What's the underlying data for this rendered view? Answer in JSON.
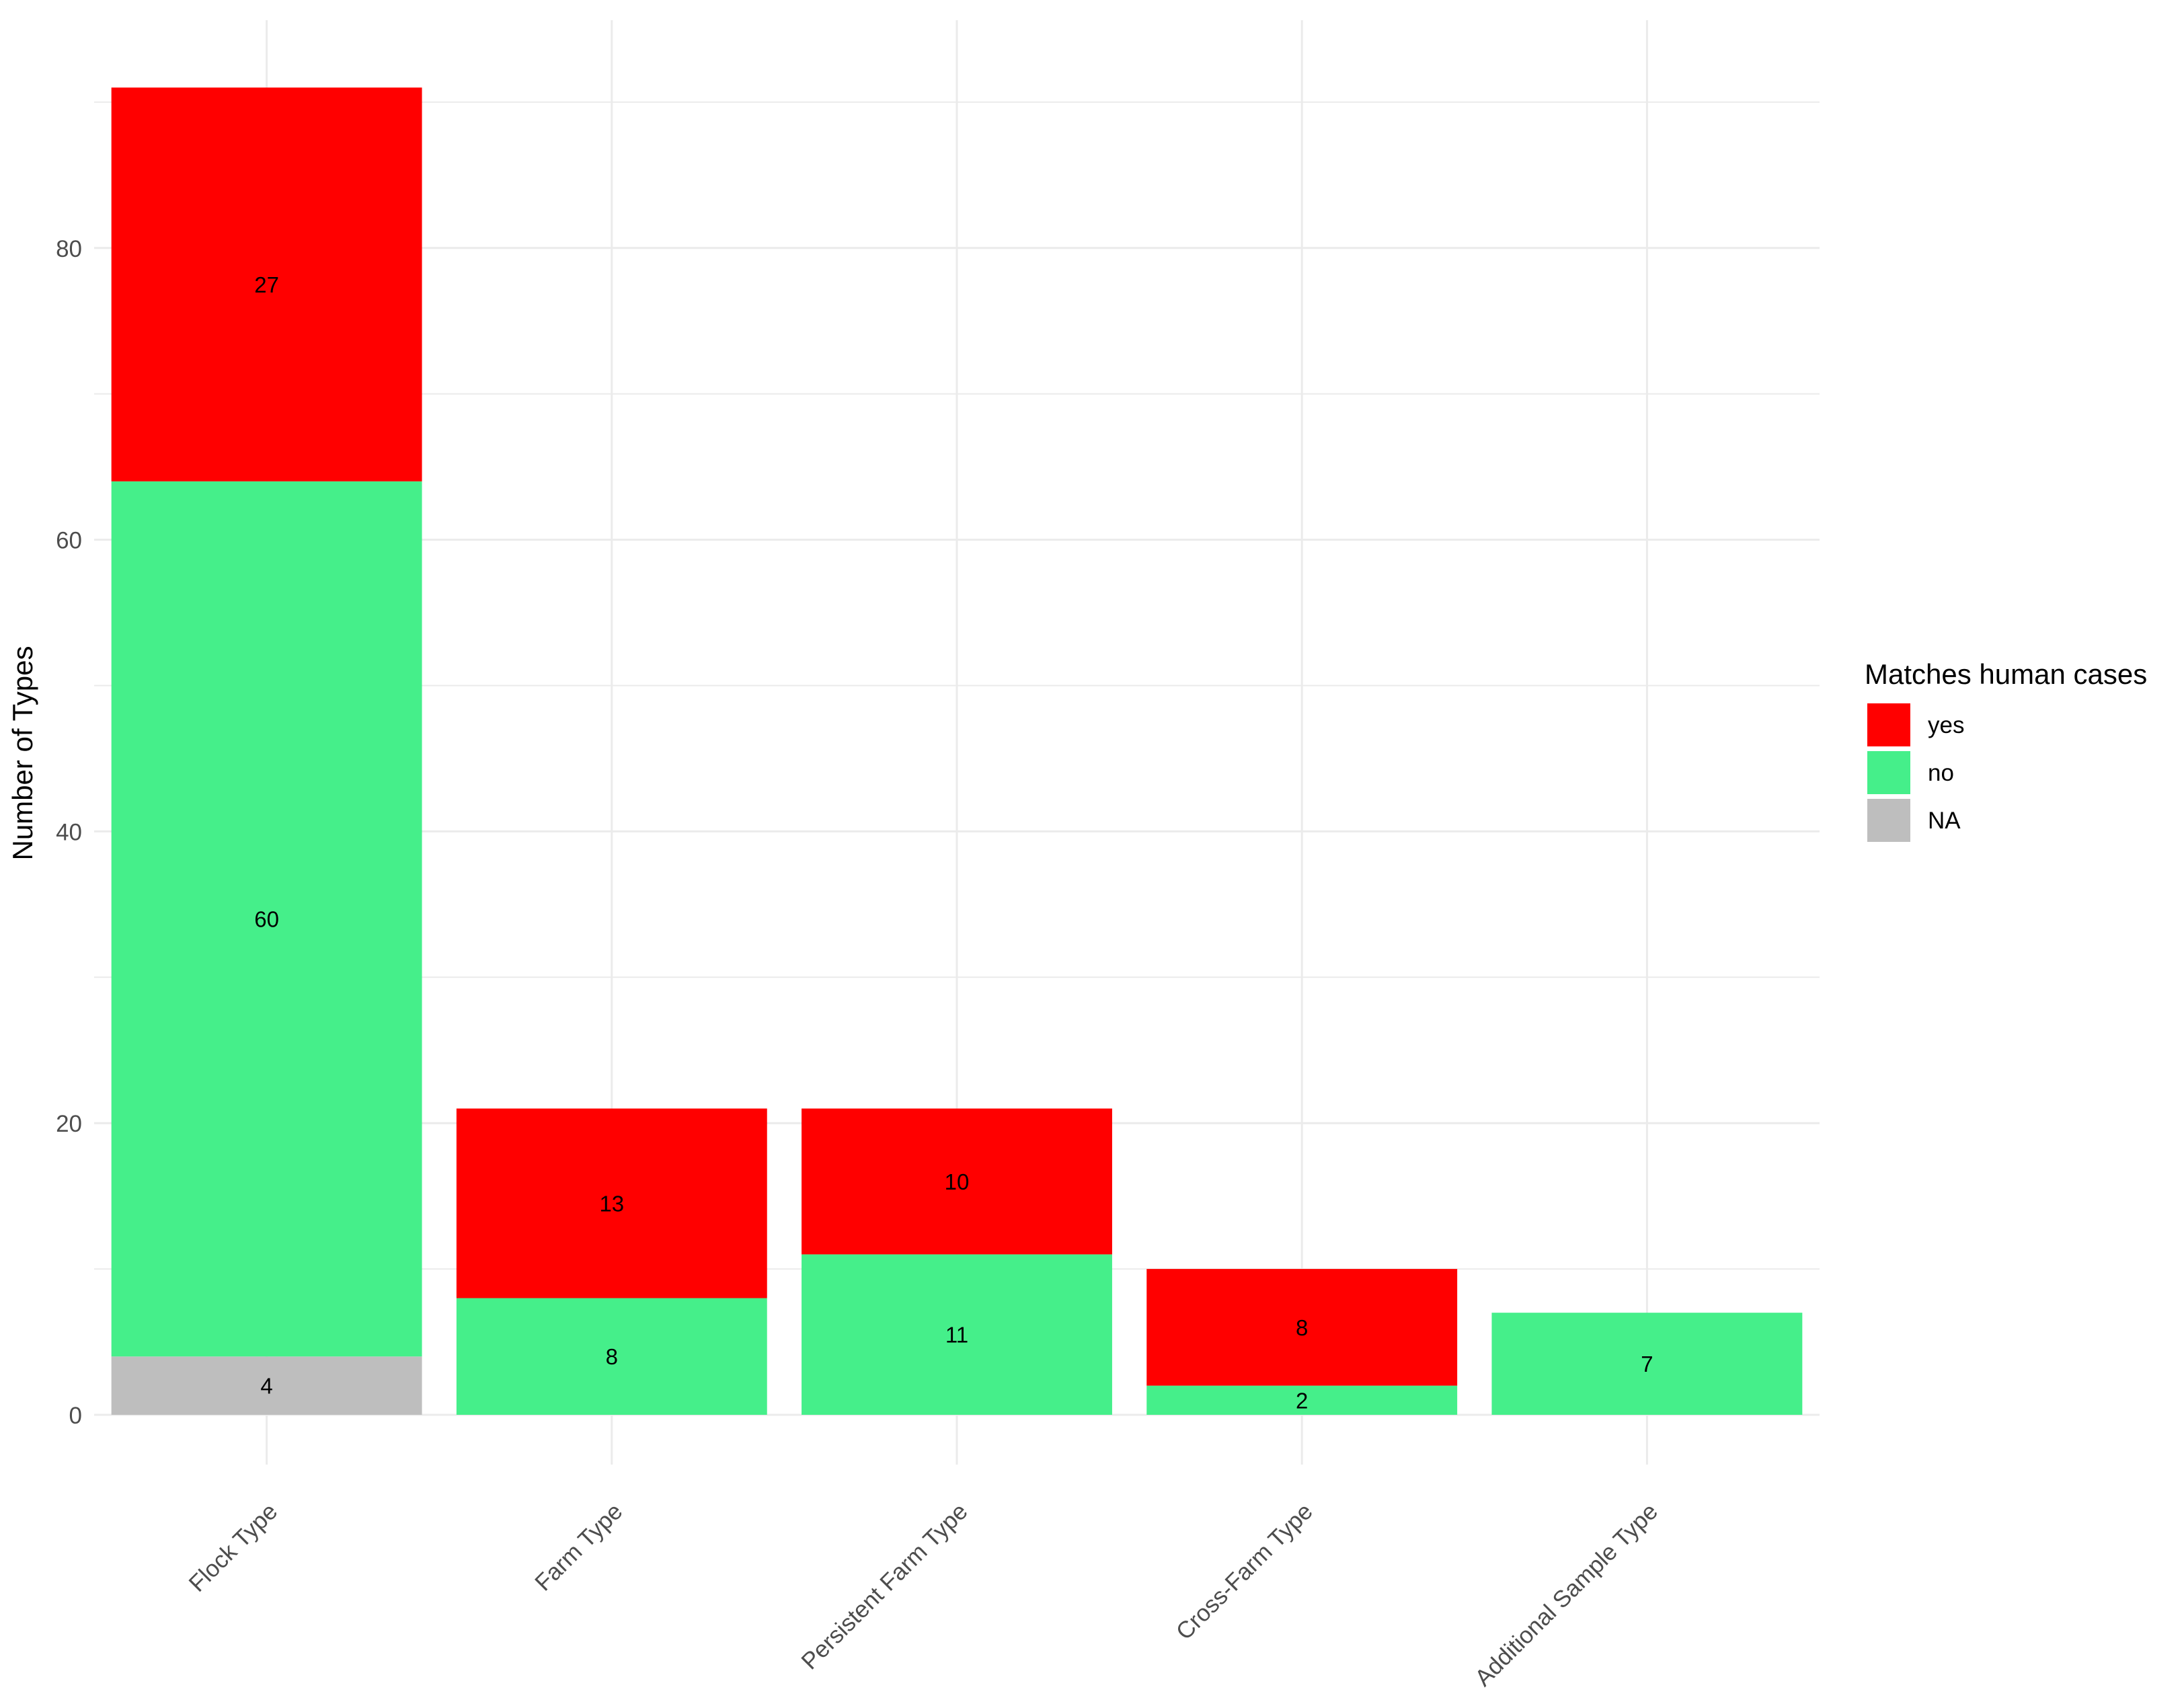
{
  "chart_data": {
    "type": "bar",
    "stacked": true,
    "title": "",
    "xlabel": "",
    "ylabel": "Number of Types",
    "ylim": [
      -4.5,
      92
    ],
    "yticks": [
      0,
      20,
      40,
      60,
      80
    ],
    "y_minor_ticks": [
      10,
      30,
      50,
      70,
      90
    ],
    "grid": true,
    "categories": [
      "Flock Type",
      "Farm Type",
      "Persistent Farm Type",
      "Cross-Farm Type",
      "Additional Sample Type"
    ],
    "stack_order": [
      "NA",
      "no",
      "yes"
    ],
    "series": [
      {
        "name": "yes",
        "color": "#ff0000",
        "values": [
          27,
          13,
          10,
          8,
          0
        ]
      },
      {
        "name": "no",
        "color": "#45ef8a",
        "values": [
          60,
          8,
          11,
          2,
          7
        ]
      },
      {
        "name": "NA",
        "color": "#bebebe",
        "values": [
          4,
          0,
          0,
          0,
          0
        ]
      }
    ],
    "legend": {
      "title": "Matches human cases",
      "position": "right",
      "items": [
        {
          "label": "yes",
          "color": "#ff0000"
        },
        {
          "label": "no",
          "color": "#45ef8a"
        },
        {
          "label": "NA",
          "color": "#bebebe"
        }
      ]
    },
    "colors": {
      "background": "#ffffff",
      "grid": "#ebebeb",
      "tick_text": "#4d4d4d",
      "label_text": "#000000"
    }
  }
}
